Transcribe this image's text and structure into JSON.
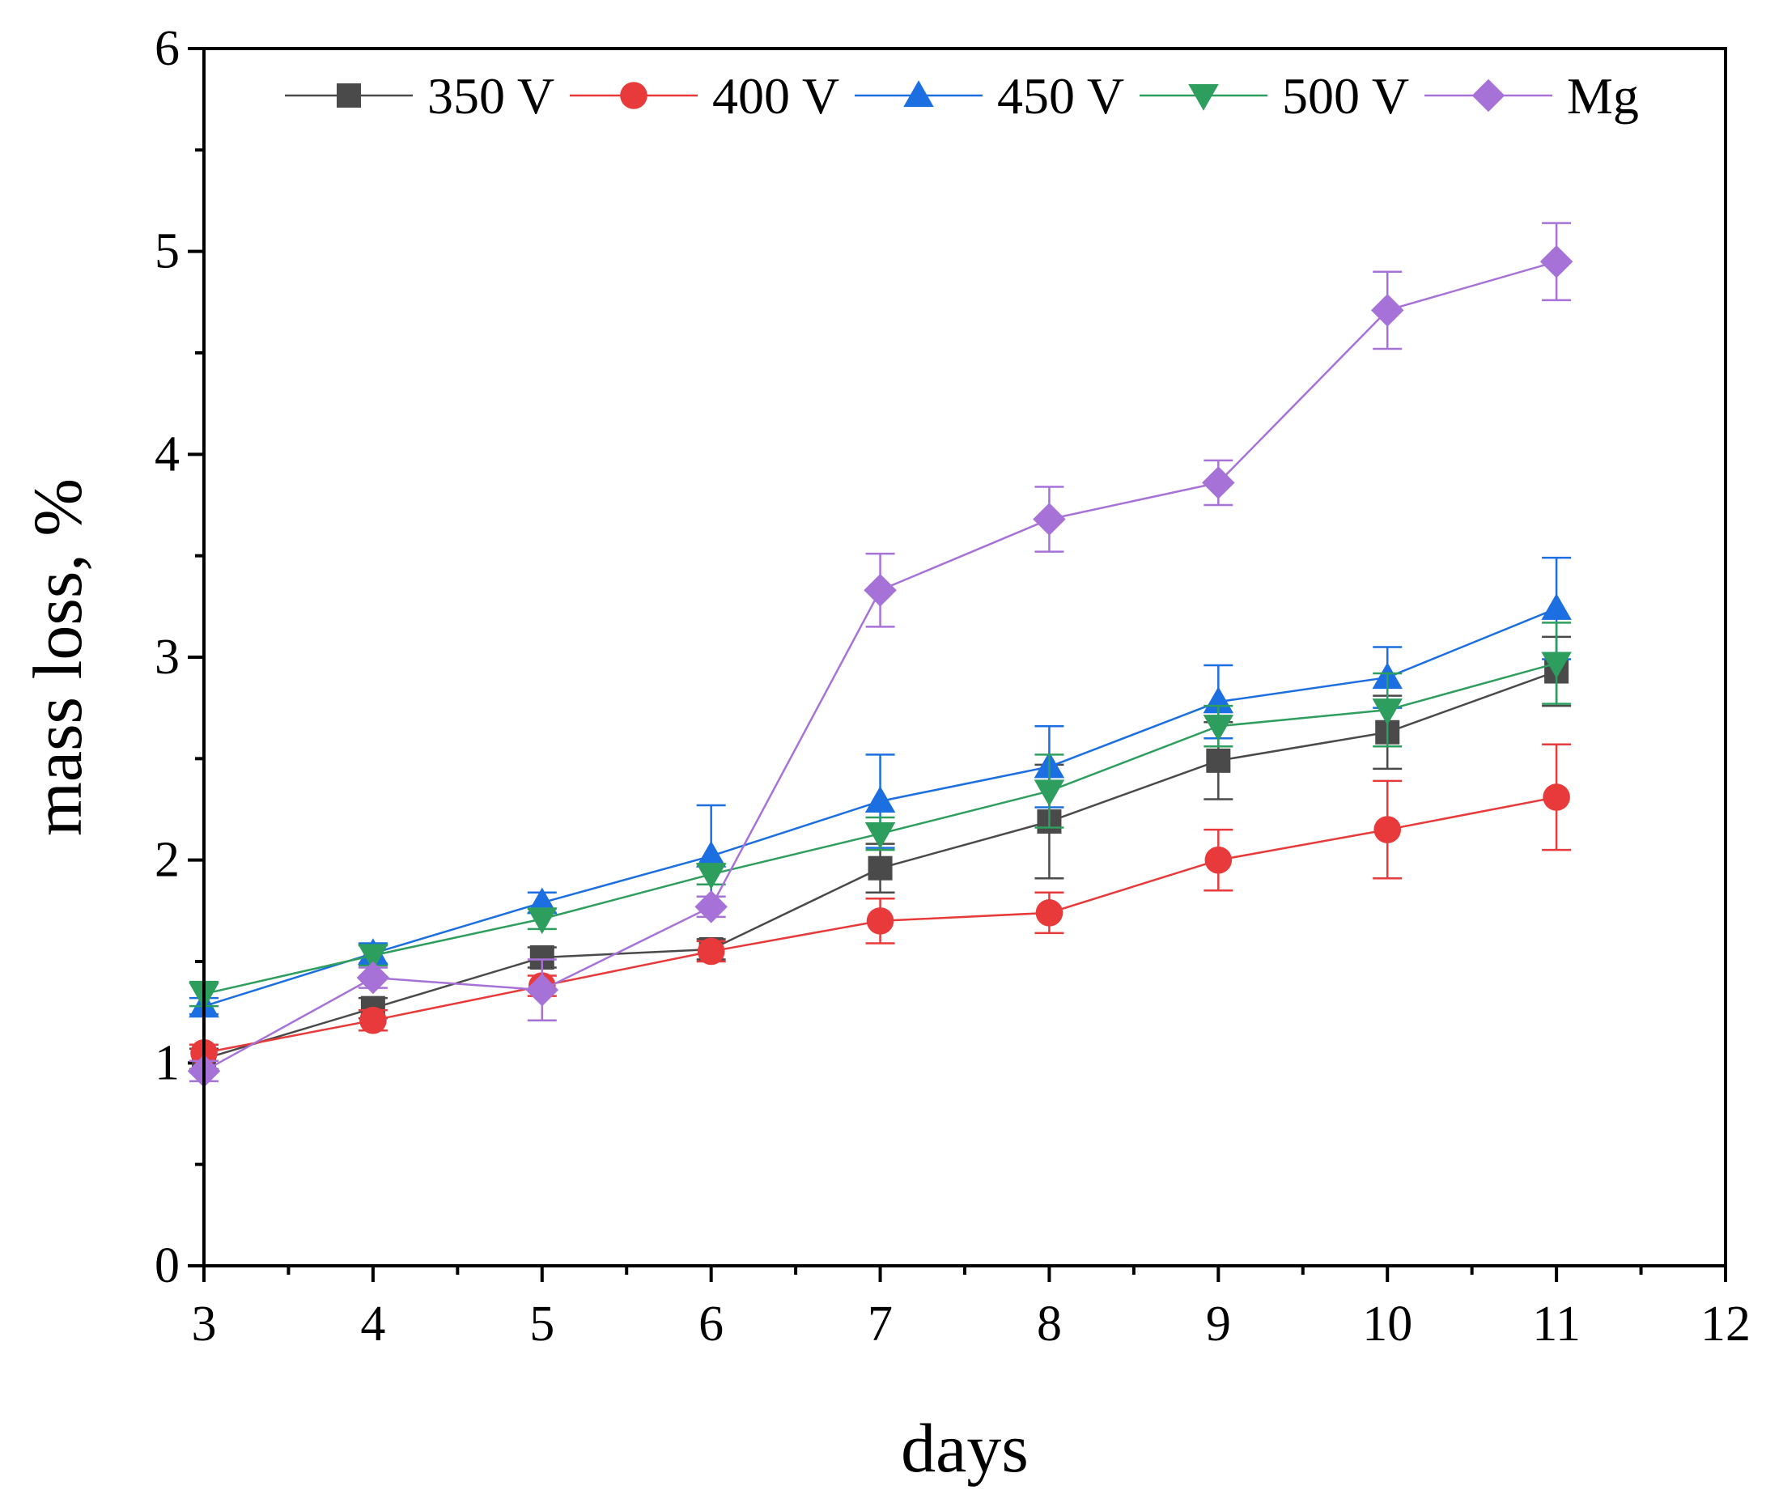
{
  "chart_data": {
    "type": "line",
    "title": "",
    "xlabel": "days",
    "ylabel": "mass loss, %",
    "xlim": [
      3,
      12
    ],
    "ylim": [
      0,
      6
    ],
    "xticks": [
      3,
      4,
      5,
      6,
      7,
      8,
      9,
      10,
      11,
      12
    ],
    "yticks": [
      0,
      1,
      2,
      3,
      4,
      5,
      6
    ],
    "x": [
      3,
      4,
      5,
      6,
      7,
      8,
      9,
      10,
      11
    ],
    "legend_position": "top",
    "series": [
      {
        "name": "350 V",
        "color": "#4a4a4a",
        "marker": "square",
        "values": [
          1.02,
          1.27,
          1.52,
          1.56,
          1.96,
          2.19,
          2.49,
          2.63,
          2.93
        ],
        "errors": [
          0.05,
          0.05,
          0.05,
          0.05,
          0.12,
          0.28,
          0.19,
          0.18,
          0.17
        ]
      },
      {
        "name": "400 V",
        "color": "#e83a3a",
        "marker": "circle",
        "values": [
          1.05,
          1.21,
          1.38,
          1.55,
          1.7,
          1.74,
          2.0,
          2.15,
          2.31
        ],
        "errors": [
          0.04,
          0.05,
          0.05,
          0.05,
          0.11,
          0.1,
          0.15,
          0.24,
          0.26
        ]
      },
      {
        "name": "450 V",
        "color": "#1c6fe0",
        "marker": "triangle-up",
        "values": [
          1.28,
          1.54,
          1.79,
          2.02,
          2.29,
          2.46,
          2.78,
          2.9,
          3.24
        ],
        "errors": [
          0.04,
          0.05,
          0.05,
          0.25,
          0.23,
          0.2,
          0.18,
          0.15,
          0.25
        ]
      },
      {
        "name": "500 V",
        "color": "#2e9e5e",
        "marker": "triangle-down",
        "values": [
          1.34,
          1.53,
          1.71,
          1.93,
          2.13,
          2.34,
          2.66,
          2.74,
          2.97
        ],
        "errors": [
          0.06,
          0.05,
          0.05,
          0.05,
          0.08,
          0.18,
          0.1,
          0.18,
          0.2
        ]
      },
      {
        "name": "Mg",
        "color": "#a772d8",
        "marker": "diamond",
        "values": [
          0.96,
          1.42,
          1.36,
          1.77,
          3.33,
          3.68,
          3.86,
          4.71,
          4.95
        ],
        "errors": [
          0.05,
          0.05,
          0.15,
          0.05,
          0.18,
          0.16,
          0.11,
          0.19,
          0.19
        ]
      }
    ]
  }
}
